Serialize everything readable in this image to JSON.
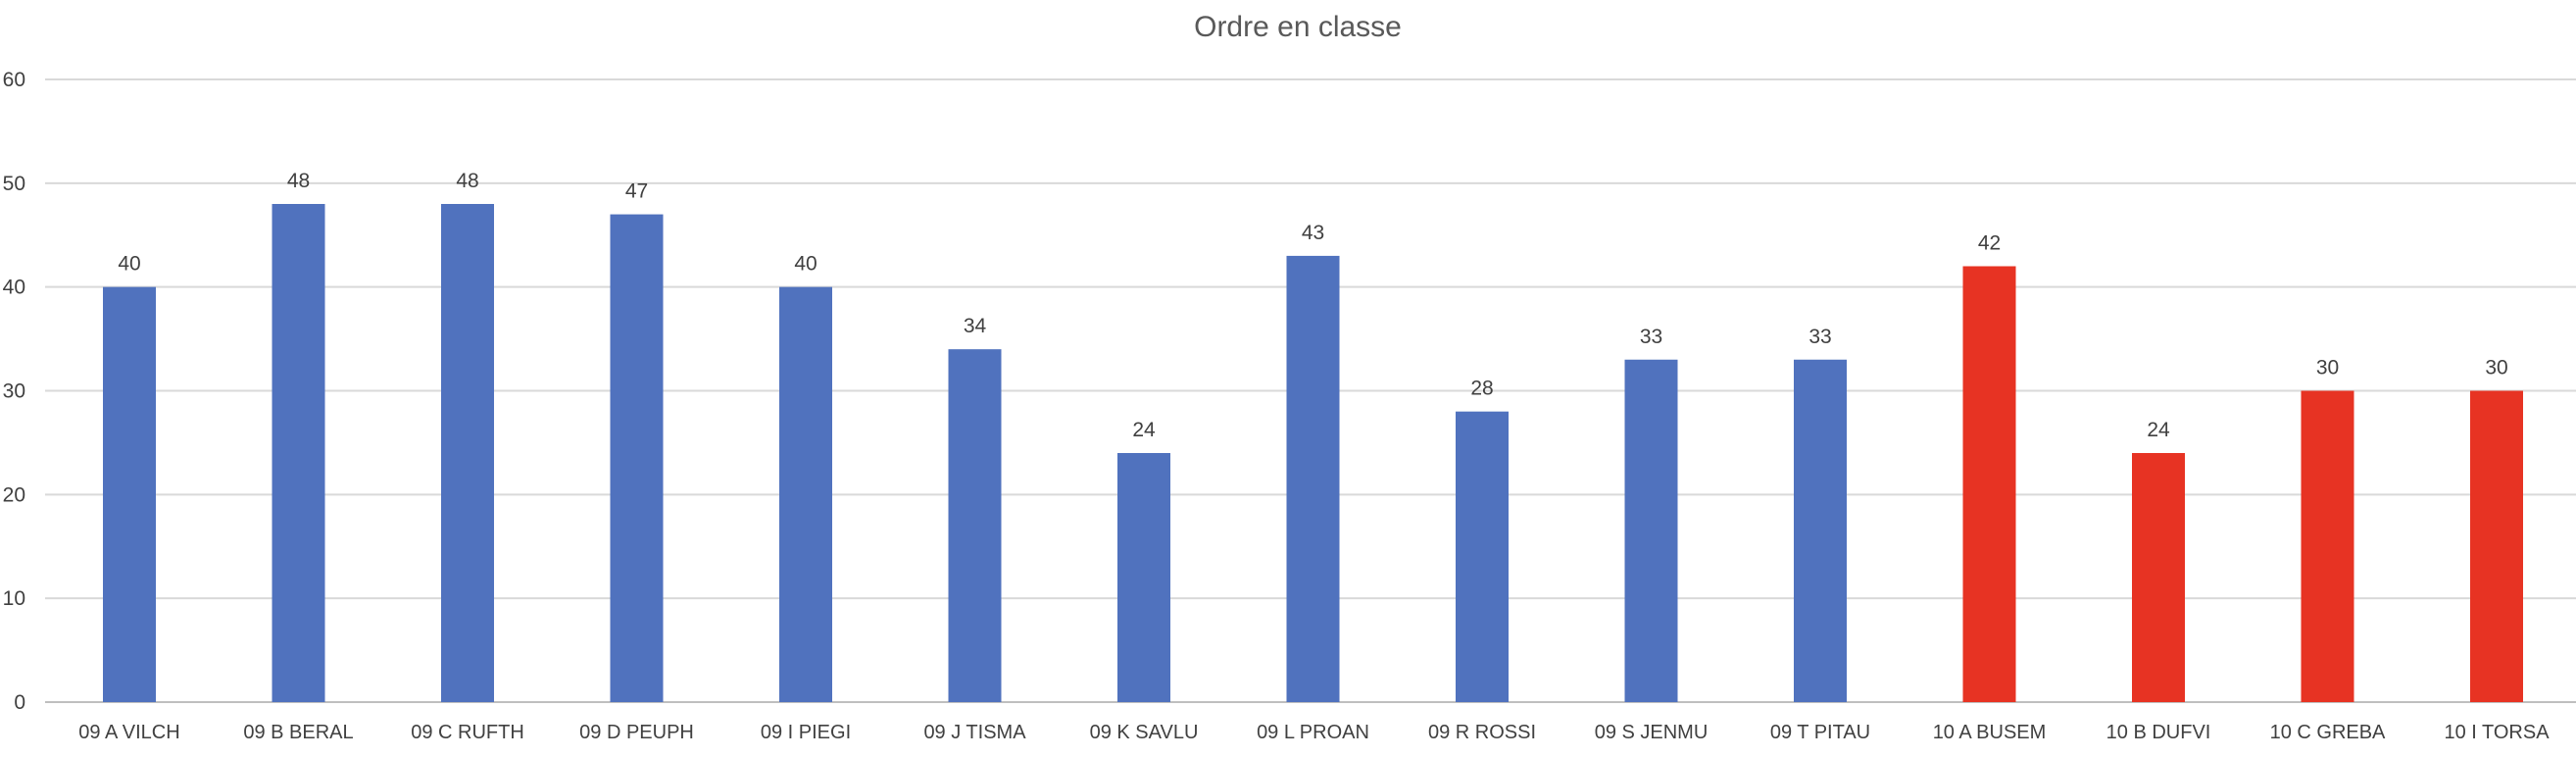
{
  "chart_data": {
    "type": "bar",
    "title": "Ordre en classe",
    "xlabel": "",
    "ylabel": "",
    "ylim": [
      0,
      60
    ],
    "yticks": [
      0,
      10,
      20,
      30,
      40,
      50,
      60
    ],
    "grid": true,
    "legend": "none",
    "categories": [
      "09 A VILCH",
      "09 B BERAL",
      "09 C RUFTH",
      "09 D PEUPH",
      "09 I PIEGI",
      "09 J TISMA",
      "09 K SAVLU",
      "09 L PROAN",
      "09 R ROSSI",
      "09 S JENMU",
      "09 T PITAU",
      "10 A BUSEM",
      "10 B DUFVI",
      "10 C GREBA",
      "10 I TORSA"
    ],
    "values": [
      40,
      48,
      48,
      47,
      40,
      34,
      24,
      43,
      28,
      33,
      33,
      42,
      24,
      30,
      30
    ],
    "bar_colors": [
      "#5072be",
      "#5072be",
      "#5072be",
      "#5072be",
      "#5072be",
      "#5072be",
      "#5072be",
      "#5072be",
      "#5072be",
      "#5072be",
      "#5072be",
      "#e73323",
      "#e73323",
      "#e73323",
      "#e73323"
    ]
  },
  "colors": {
    "grid": "#d9d9d9",
    "axis": "#bfbfbf",
    "text": "#404040",
    "title": "#595959"
  }
}
